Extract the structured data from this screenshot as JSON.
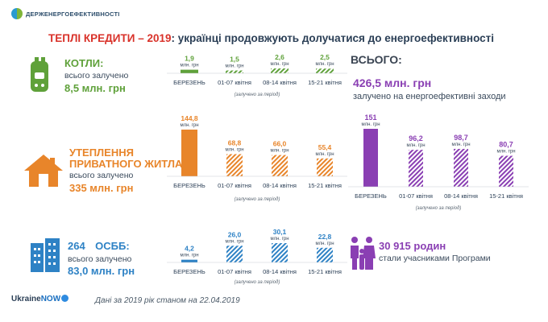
{
  "header": {
    "logo_text": "ДЕРЖЕНЕРГОЕФЕКТИВНОСТІ",
    "title_red": "ТЕПЛІ КРЕДИТИ – 2019",
    "title_rest": ": українці продовжують долучатися до енергоефективності"
  },
  "sections": {
    "boilers": {
      "title": "КОТЛИ:",
      "subtitle": "всього залучено",
      "value": "8,5 млн. грн",
      "icon": "boiler-icon",
      "color": "#5fa13a"
    },
    "houses": {
      "title_line1": "УТЕПЛЕННЯ",
      "title_line2": "ПРИВАТНОГО ЖИТЛА:",
      "subtitle": "всього залучено",
      "value": "335 млн. грн",
      "icon": "house-icon",
      "color": "#e8852a"
    },
    "osbb": {
      "count": "264",
      "title": "ОСББ:",
      "subtitle": "всього залучено",
      "value": "83,0 млн. грн",
      "icon": "buildings-icon",
      "color": "#2e82c5"
    }
  },
  "total": {
    "heading": "ВСЬОГО:",
    "value": "426,5 млн. грн",
    "subtitle": "залучено на енергоефективні заходи",
    "color": "#8a3fb3"
  },
  "families": {
    "value": "30 915 родин",
    "subtitle": "стали учасниками Програми",
    "icon": "family-icon"
  },
  "footer": {
    "brand_a": "Ukraine",
    "brand_b": "NOW",
    "note": "Дані за 2019 рік станом на 22.04.2019"
  },
  "chart_data": [
    {
      "type": "bar",
      "name": "boilers",
      "categories": [
        "БЕРЕЗЕНЬ",
        "01-07 квітня",
        "08-14 квітня",
        "15-21 квітня"
      ],
      "values": [
        1.9,
        1.5,
        2.6,
        2.5
      ],
      "value_labels": [
        "1,9",
        "1,5",
        "2,6",
        "2,5"
      ],
      "unit_label": "млн. грн",
      "note": "(залучено за період)",
      "color": "#5fa13a"
    },
    {
      "type": "bar",
      "name": "houses",
      "categories": [
        "БЕРЕЗЕНЬ",
        "01-07 квітня",
        "08-14 квітня",
        "15-21 квітня"
      ],
      "values": [
        144.8,
        68.8,
        66.0,
        55.4
      ],
      "value_labels": [
        "144,8",
        "68,8",
        "66,0",
        "55,4"
      ],
      "unit_label": "млн. грн",
      "note": "(залучено за період)",
      "color": "#e8852a"
    },
    {
      "type": "bar",
      "name": "osbb",
      "categories": [
        "БЕРЕЗЕНЬ",
        "01-07 квітня",
        "08-14 квітня",
        "15-21 квітня"
      ],
      "values": [
        4.2,
        26.0,
        30.1,
        22.8
      ],
      "value_labels": [
        "4,2",
        "26,0",
        "30,1",
        "22,8"
      ],
      "unit_label": "млн. грн",
      "note": "(залучено за період)",
      "color": "#2e82c5"
    },
    {
      "type": "bar",
      "name": "total",
      "categories": [
        "БЕРЕЗЕНЬ",
        "01-07 квітня",
        "08-14 квітня",
        "15-21 квітня"
      ],
      "values": [
        151,
        96.2,
        98.7,
        80.7
      ],
      "value_labels": [
        "151",
        "96,2",
        "98,7",
        "80,7"
      ],
      "unit_label": "млн. грн",
      "note": "(залучено за період)",
      "color": "#8a3fb3"
    }
  ]
}
